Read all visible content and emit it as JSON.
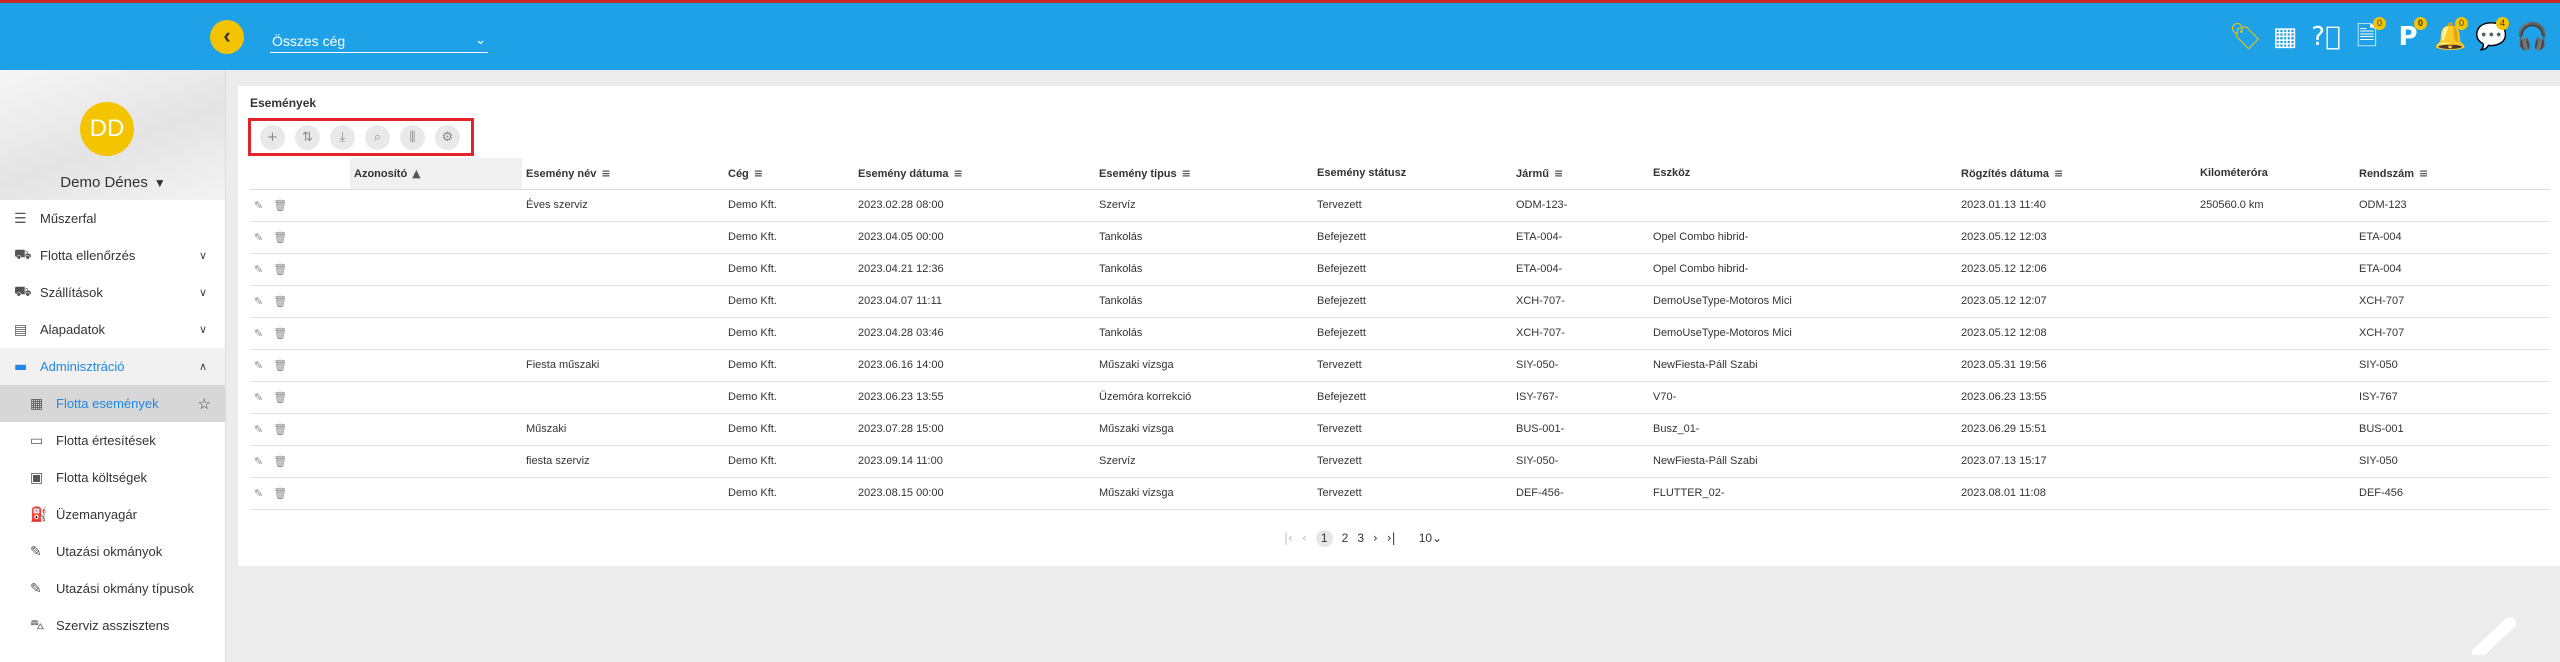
{
  "header": {
    "company_select": "Összes cég",
    "badges": {
      "documents": "0",
      "parking": "0",
      "notifications": "0",
      "messages": "4"
    }
  },
  "user": {
    "initials": "DD",
    "name": "Demo Dénes"
  },
  "sidebar": {
    "items": [
      {
        "label": "Műszerfal",
        "icon": "dashboard-icon"
      },
      {
        "label": "Flotta ellenőrzés",
        "icon": "car-check-icon"
      },
      {
        "label": "Szállítások",
        "icon": "truck-icon"
      },
      {
        "label": "Alapadatok",
        "icon": "data-icon"
      },
      {
        "label": "Adminisztráció",
        "icon": "monitor-icon"
      },
      {
        "label": "Flotta események",
        "icon": "calendar-icon"
      },
      {
        "label": "Flotta értesítések",
        "icon": "notification-icon"
      },
      {
        "label": "Flotta költségek",
        "icon": "cost-icon"
      },
      {
        "label": "Üzemanyagár",
        "icon": "fuel-icon"
      },
      {
        "label": "Utazási okmányok",
        "icon": "document-icon"
      },
      {
        "label": "Utazási okmány típusok",
        "icon": "document-type-icon"
      },
      {
        "label": "Szerviz asszisztens",
        "icon": "service-car-icon"
      }
    ]
  },
  "page": {
    "title": "Események"
  },
  "table": {
    "columns": [
      "Azonosító",
      "Esemény név",
      "Cég",
      "Esemény dátuma",
      "Esemény típus",
      "Esemény státusz",
      "Jármű",
      "Eszköz",
      "Rögzítés dátuma",
      "Kilométeróra",
      "Rendszám"
    ],
    "rows": [
      [
        "",
        "Éves szerviz",
        "Demo Kft.",
        "2023.02.28 08:00",
        "Szervíz",
        "Tervezett",
        "ODM-123-",
        "",
        "2023.01.13 11:40",
        "250560.0 km",
        "ODM-123"
      ],
      [
        "",
        "",
        "Demo Kft.",
        "2023.04.05 00:00",
        "Tankolás",
        "Befejezett",
        "ETA-004-",
        "Opel Combo hibrid-",
        "2023.05.12 12:03",
        "",
        "ETA-004"
      ],
      [
        "",
        "",
        "Demo Kft.",
        "2023.04.21 12:36",
        "Tankolás",
        "Befejezett",
        "ETA-004-",
        "Opel Combo hibrid-",
        "2023.05.12 12:06",
        "",
        "ETA-004"
      ],
      [
        "",
        "",
        "Demo Kft.",
        "2023.04.07 11:11",
        "Tankolás",
        "Befejezett",
        "XCH-707-",
        "DemoUseType-Motoros Mici",
        "2023.05.12 12:07",
        "",
        "XCH-707"
      ],
      [
        "",
        "",
        "Demo Kft.",
        "2023.04.28 03:46",
        "Tankolás",
        "Befejezett",
        "XCH-707-",
        "DemoUseType-Motoros Mici",
        "2023.05.12 12:08",
        "",
        "XCH-707"
      ],
      [
        "",
        "Fiesta műszaki",
        "Demo Kft.",
        "2023.06.16 14:00",
        "Műszaki vizsga",
        "Tervezett",
        "SIY-050-",
        "NewFiesta-Páll Szabi",
        "2023.05.31 19:56",
        "",
        "SIY-050"
      ],
      [
        "",
        "",
        "Demo Kft.",
        "2023.06.23 13:55",
        "Üzemóra korrekció",
        "Befejezett",
        "ISY-767-",
        "V70-",
        "2023.06.23 13:55",
        "",
        "ISY-767"
      ],
      [
        "",
        "Műszaki",
        "Demo Kft.",
        "2023.07.28 15:00",
        "Műszaki vizsga",
        "Tervezett",
        "BUS-001-",
        "Busz_01-",
        "2023.06.29 15:51",
        "",
        "BUS-001"
      ],
      [
        "",
        "fiesta szerviz",
        "Demo Kft.",
        "2023.09.14 11:00",
        "Szervíz",
        "Tervezett",
        "SIY-050-",
        "NewFiesta-Páll Szabi",
        "2023.07.13 15:17",
        "",
        "SIY-050"
      ],
      [
        "",
        "",
        "Demo Kft.",
        "2023.08.15 00:00",
        "Műszaki vizsga",
        "Tervezett",
        "DEF-456-",
        "FLUTTER_02-",
        "2023.08.01 11:08",
        "",
        "DEF-456"
      ]
    ]
  },
  "pagination": {
    "pages": [
      "1",
      "2",
      "3"
    ],
    "current": "1",
    "page_size": "10"
  }
}
